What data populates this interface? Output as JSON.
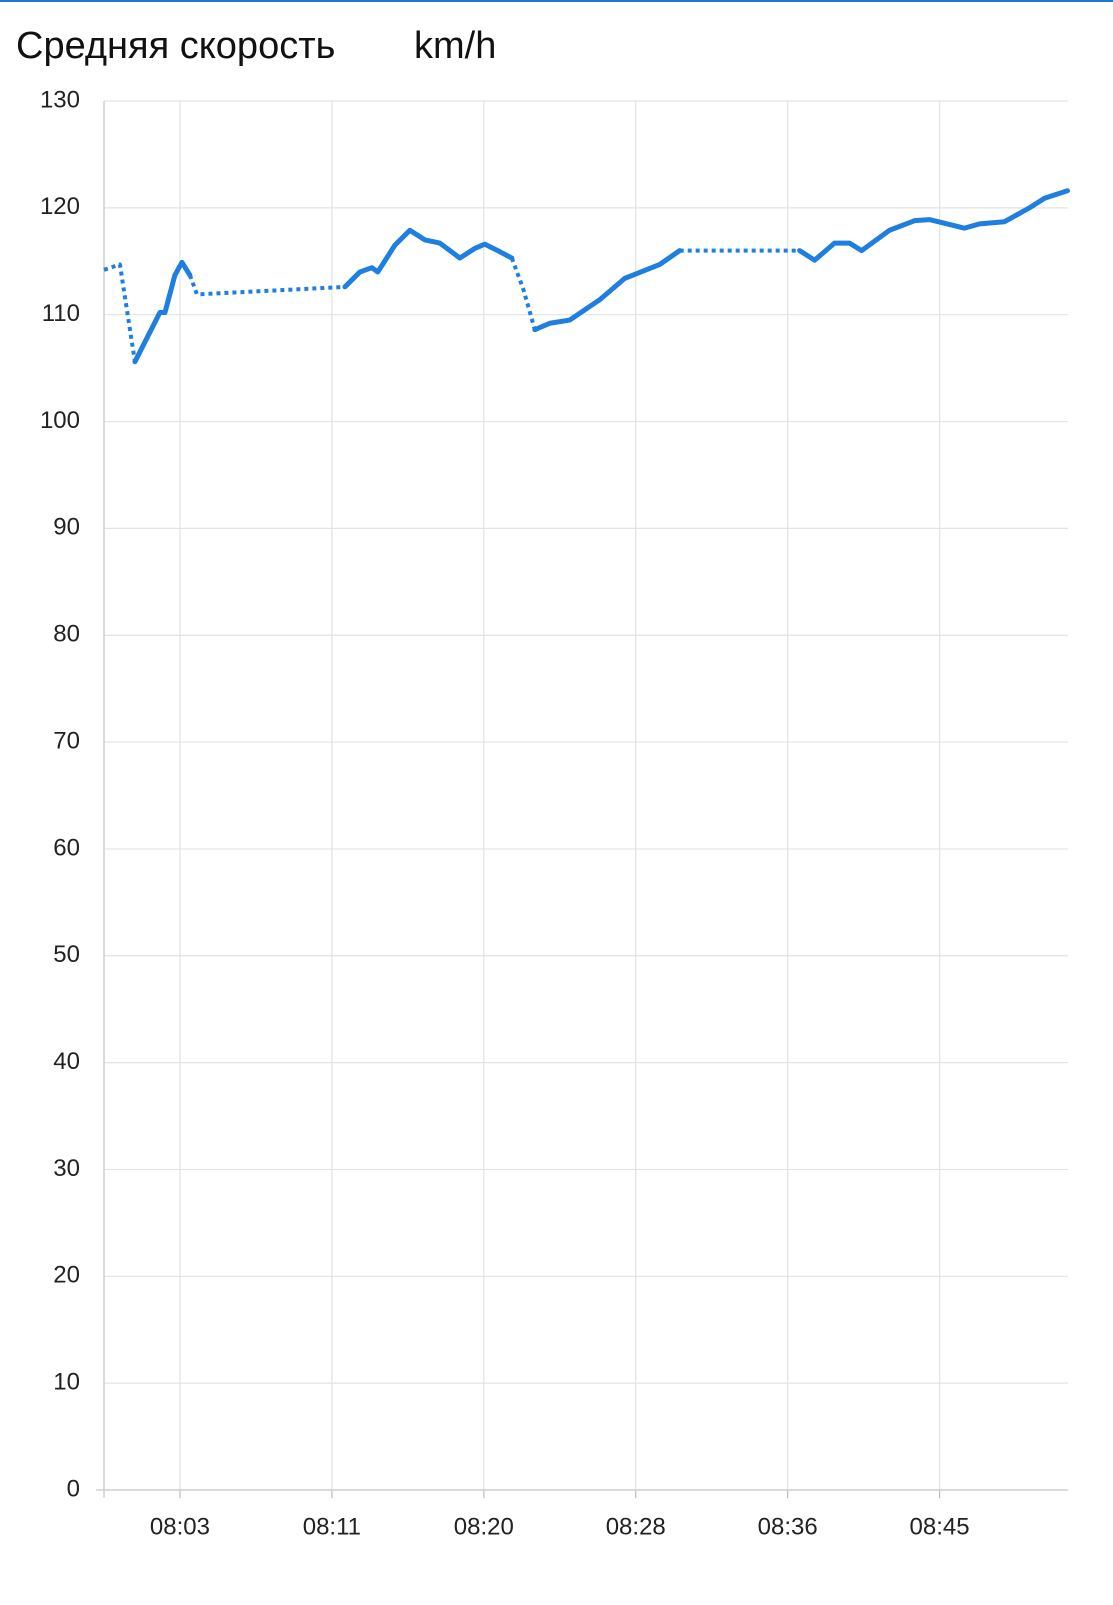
{
  "chart_data": {
    "type": "line",
    "title": "Средняя скорость",
    "unit": "km/h",
    "x": [
      -0.9,
      -0.02,
      0.81,
      2.19,
      2.47,
      3.02,
      3.41,
      3.85,
      4.24,
      12.42,
      13.25,
      13.91,
      14.24,
      15.18,
      16.01,
      16.84,
      17.67,
      18.78,
      19.6,
      20.15,
      20.98,
      21.65,
      22.3,
      22.92,
      23.75,
      24.85,
      26.51,
      27.89,
      29.83,
      30.93,
      34.2,
      37.56,
      38.39,
      39.49,
      40.32,
      40.99,
      42.53,
      43.92,
      44.74,
      46.68,
      47.51,
      48.89,
      50.27,
      51.1,
      52.37
    ],
    "series": [
      {
        "color": "#1e7fe0",
        "dash": "solid",
        "values": [
          null,
          null,
          105.6,
          110.2,
          110.2,
          113.7,
          114.9,
          113.7,
          null,
          112.6,
          114.0,
          114.4,
          114.0,
          116.5,
          117.9,
          117.0,
          116.7,
          115.3,
          116.2,
          116.6,
          115.9,
          115.3,
          null,
          108.6,
          109.2,
          109.5,
          111.4,
          113.4,
          114.7,
          116.0,
          null,
          116.0,
          115.1,
          116.7,
          116.7,
          116.0,
          117.9,
          118.8,
          118.9,
          118.1,
          118.5,
          118.7,
          120.0,
          120.9,
          121.6
        ]
      },
      {
        "color": "#1e7fe0",
        "dash": "dotted",
        "values": [
          114.2,
          114.7,
          105.6,
          null,
          null,
          null,
          null,
          113.7,
          111.9,
          112.6,
          null,
          null,
          null,
          null,
          null,
          null,
          null,
          null,
          null,
          null,
          null,
          115.3,
          112.3,
          108.6,
          null,
          null,
          null,
          null,
          null,
          116.0,
          116.0,
          116.0,
          null,
          null,
          null,
          null,
          null,
          null,
          null,
          null,
          null,
          null,
          null,
          null,
          null
        ]
      }
    ],
    "xlim": [
      -0.9,
      52.4
    ],
    "xticks": [
      {
        "value": 3.3,
        "label": "08:03"
      },
      {
        "value": 11.7,
        "label": "08:11"
      },
      {
        "value": 20.1,
        "label": "08:20"
      },
      {
        "value": 28.5,
        "label": "08:28"
      },
      {
        "value": 36.9,
        "label": "08:36"
      },
      {
        "value": 45.3,
        "label": "08:45"
      }
    ],
    "ylim": [
      0,
      130
    ],
    "yticks": [
      0,
      10,
      20,
      30,
      40,
      50,
      60,
      70,
      80,
      90,
      100,
      110,
      120,
      130
    ],
    "grid": true
  }
}
